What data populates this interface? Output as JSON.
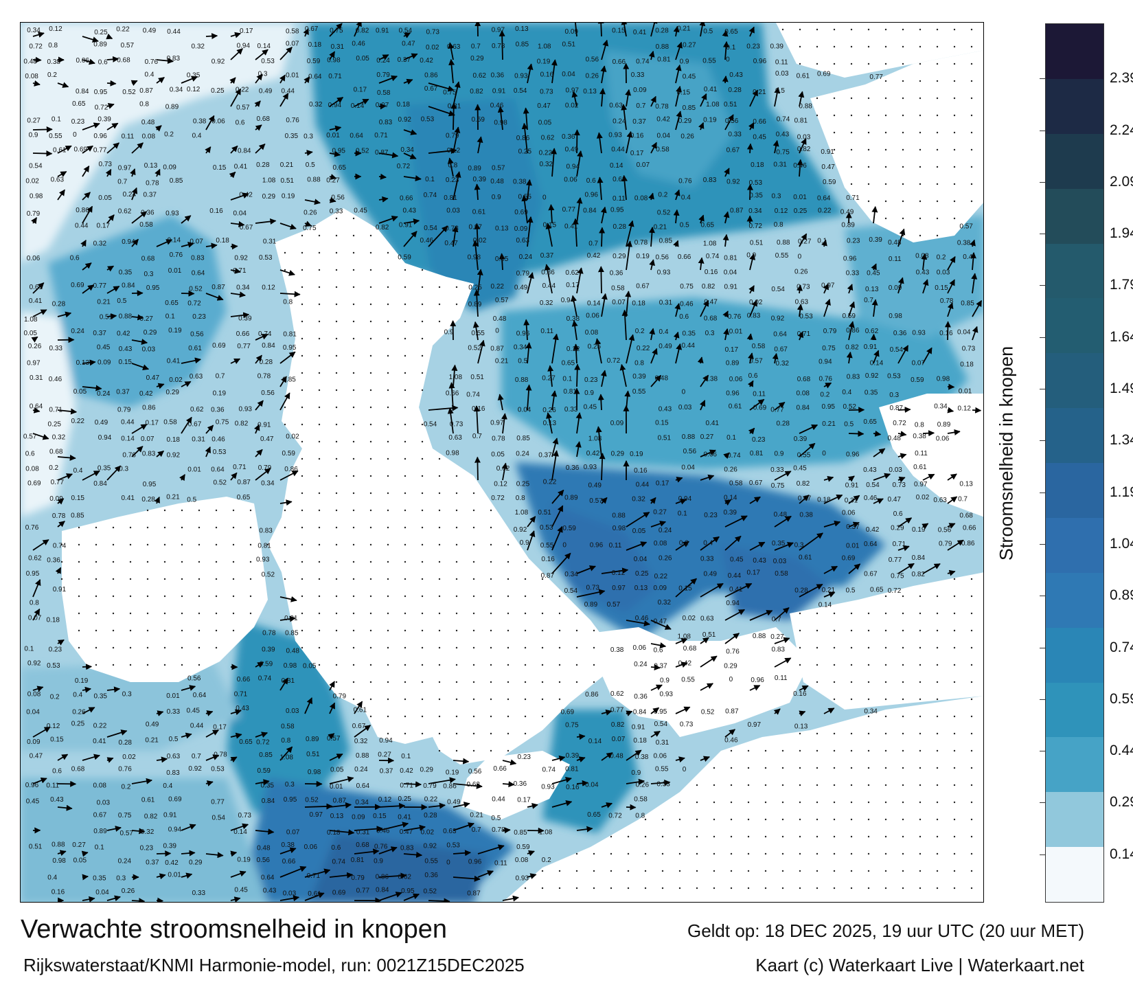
{
  "title": "Verwachte stroomsnelheid in knopen",
  "subtitle": "Rijkswaterstaat/KNMI Harmonie-model, run: 0021Z15DEC2025",
  "valid": "Geldt op: 18 DEC 2025, 19 uur UTC (20 uur MET)",
  "credit": "Kaart (c) Waterkaart Live | Waterkaart.net",
  "colorbar": {
    "label": "Stroomsnelheid in knopen",
    "ticks": [
      "2.39",
      "2.24",
      "2.09",
      "1.94",
      "1.79",
      "1.64",
      "1.49",
      "1.34",
      "1.19",
      "1.04",
      "0.89",
      "0.74",
      "0.59",
      "0.44",
      "0.29",
      "0.14"
    ],
    "tick_values": [
      2.39,
      2.24,
      2.09,
      1.94,
      1.79,
      1.64,
      1.49,
      1.34,
      1.19,
      1.04,
      0.89,
      0.74,
      0.59,
      0.44,
      0.29,
      0.14
    ],
    "range": [
      0,
      2.55
    ],
    "colors": [
      "#1c1836",
      "#1d2a45",
      "#1e3b4e",
      "#234c5a",
      "#245a6c",
      "#235d71",
      "#245e7c",
      "#25628a",
      "#2a66a0",
      "#2f6fae",
      "#2f79b4",
      "#2a86b6",
      "#2f93ba",
      "#46a3c6",
      "#91c8dc",
      "#f4f9fc"
    ]
  },
  "speed_labels": [
    "0.34",
    "0.27",
    "0.16",
    "0.14",
    "0.11",
    "0.13",
    "0.05",
    "0.12",
    "0.1",
    "0.04",
    "0.07",
    "0.08",
    "0.09",
    "0.24",
    "0.25",
    "0.23",
    "0.26",
    "0.18",
    "0.2",
    "0.15",
    "0.37",
    "0.22",
    "0.39",
    "0.33",
    "0.31",
    "0.4",
    "0.41",
    "0.42",
    "0.49",
    "0.48",
    "0.45",
    "0.46",
    "0.35",
    "0.28",
    "0.29",
    "0.44",
    "0.38",
    "0.43",
    "0.47",
    "0.3",
    "0.21",
    "0.19",
    "0.17",
    "0.06",
    "0.03",
    "0.02",
    "0.01",
    "0.5",
    "0.56",
    "0.58",
    "0.6",
    "0.61",
    "0.63",
    "0.64",
    "0.65",
    "0.66",
    "0.67",
    "0.68",
    "0.69",
    "0.7",
    "0.71",
    "0.72",
    "0.74",
    "0.75",
    "0.76",
    "0.77",
    "0.78",
    "0.79",
    "0.8",
    "0.81",
    "0.82",
    "0.83",
    "0.84",
    "0.85",
    "0.86",
    "0.89",
    "0.9",
    "0.91",
    "0.92",
    "0.95",
    "1.08",
    "0.62",
    "0.57",
    "0.55",
    "0.54",
    "0.53",
    "0.52",
    "0.51",
    "0.36",
    "0.32",
    "0",
    "0.73",
    "0.59",
    "0.87",
    "0.88",
    "0.93",
    "0.94",
    "0.96",
    "0.97",
    "0.98"
  ]
}
